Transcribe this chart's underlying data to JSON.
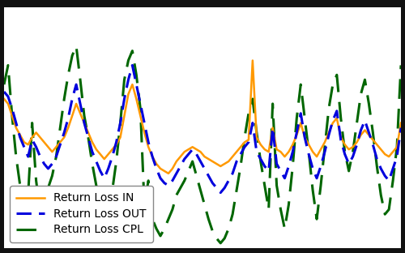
{
  "background_color": "#111111",
  "plot_bg_color": "#ffffff",
  "grid_color": "#cccccc",
  "line_IN_color": "#ff9900",
  "line_OUT_color": "#0000dd",
  "line_CPL_color": "#006600",
  "legend_IN": "Return Loss IN",
  "legend_OUT": "Return Loss OUT",
  "legend_CPL": "Return Loss CPL",
  "linewidth_IN": 1.8,
  "linewidth_OUT": 2.2,
  "linewidth_CPL": 2.2,
  "legend_fontsize": 10,
  "figsize": [
    5.0,
    3.12
  ],
  "dpi": 100,
  "ylim_min": 0.0,
  "ylim_max": 1.0,
  "y_IN": [
    0.62,
    0.6,
    0.55,
    0.5,
    0.47,
    0.44,
    0.43,
    0.46,
    0.48,
    0.46,
    0.44,
    0.42,
    0.4,
    0.42,
    0.44,
    0.46,
    0.5,
    0.55,
    0.6,
    0.56,
    0.52,
    0.48,
    0.44,
    0.41,
    0.39,
    0.37,
    0.39,
    0.41,
    0.43,
    0.46,
    0.55,
    0.64,
    0.68,
    0.62,
    0.55,
    0.48,
    0.42,
    0.38,
    0.35,
    0.33,
    0.32,
    0.31,
    0.33,
    0.36,
    0.38,
    0.4,
    0.41,
    0.42,
    0.41,
    0.4,
    0.38,
    0.37,
    0.36,
    0.35,
    0.34,
    0.35,
    0.36,
    0.38,
    0.4,
    0.42,
    0.44,
    0.45,
    0.78,
    0.46,
    0.43,
    0.41,
    0.4,
    0.5,
    0.41,
    0.4,
    0.38,
    0.4,
    0.43,
    0.47,
    0.52,
    0.46,
    0.43,
    0.4,
    0.38,
    0.41,
    0.44,
    0.48,
    0.52,
    0.54,
    0.46,
    0.43,
    0.41,
    0.42,
    0.44,
    0.47,
    0.49,
    0.47,
    0.45,
    0.43,
    0.41,
    0.39,
    0.38,
    0.4,
    0.42,
    0.52
  ],
  "y_OUT": [
    0.65,
    0.63,
    0.58,
    0.52,
    0.46,
    0.42,
    0.38,
    0.45,
    0.42,
    0.38,
    0.35,
    0.33,
    0.35,
    0.38,
    0.43,
    0.48,
    0.54,
    0.62,
    0.68,
    0.6,
    0.52,
    0.46,
    0.4,
    0.36,
    0.32,
    0.29,
    0.33,
    0.38,
    0.44,
    0.52,
    0.62,
    0.7,
    0.76,
    0.68,
    0.6,
    0.52,
    0.44,
    0.38,
    0.33,
    0.29,
    0.27,
    0.26,
    0.28,
    0.31,
    0.34,
    0.37,
    0.39,
    0.41,
    0.39,
    0.36,
    0.33,
    0.3,
    0.27,
    0.25,
    0.23,
    0.25,
    0.28,
    0.31,
    0.36,
    0.39,
    0.42,
    0.44,
    0.52,
    0.4,
    0.37,
    0.34,
    0.32,
    0.5,
    0.35,
    0.32,
    0.29,
    0.34,
    0.4,
    0.48,
    0.56,
    0.46,
    0.39,
    0.33,
    0.29,
    0.34,
    0.4,
    0.47,
    0.53,
    0.57,
    0.45,
    0.39,
    0.35,
    0.38,
    0.43,
    0.49,
    0.53,
    0.48,
    0.43,
    0.37,
    0.33,
    0.3,
    0.28,
    0.33,
    0.38,
    0.5
  ],
  "y_CPL": [
    0.68,
    0.76,
    0.55,
    0.38,
    0.26,
    0.18,
    0.22,
    0.52,
    0.28,
    0.15,
    0.18,
    0.25,
    0.3,
    0.38,
    0.5,
    0.62,
    0.72,
    0.8,
    0.84,
    0.7,
    0.55,
    0.46,
    0.35,
    0.26,
    0.18,
    0.12,
    0.16,
    0.24,
    0.36,
    0.52,
    0.7,
    0.78,
    0.82,
    0.72,
    0.58,
    0.18,
    0.28,
    0.12,
    0.08,
    0.05,
    0.08,
    0.12,
    0.16,
    0.22,
    0.25,
    0.28,
    0.32,
    0.36,
    0.3,
    0.24,
    0.18,
    0.12,
    0.07,
    0.04,
    0.02,
    0.04,
    0.08,
    0.14,
    0.24,
    0.34,
    0.46,
    0.56,
    0.62,
    0.48,
    0.36,
    0.26,
    0.16,
    0.6,
    0.26,
    0.16,
    0.08,
    0.18,
    0.34,
    0.54,
    0.68,
    0.54,
    0.4,
    0.24,
    0.12,
    0.26,
    0.42,
    0.58,
    0.68,
    0.72,
    0.54,
    0.4,
    0.32,
    0.4,
    0.52,
    0.64,
    0.7,
    0.6,
    0.48,
    0.34,
    0.22,
    0.14,
    0.16,
    0.28,
    0.42,
    0.76
  ]
}
